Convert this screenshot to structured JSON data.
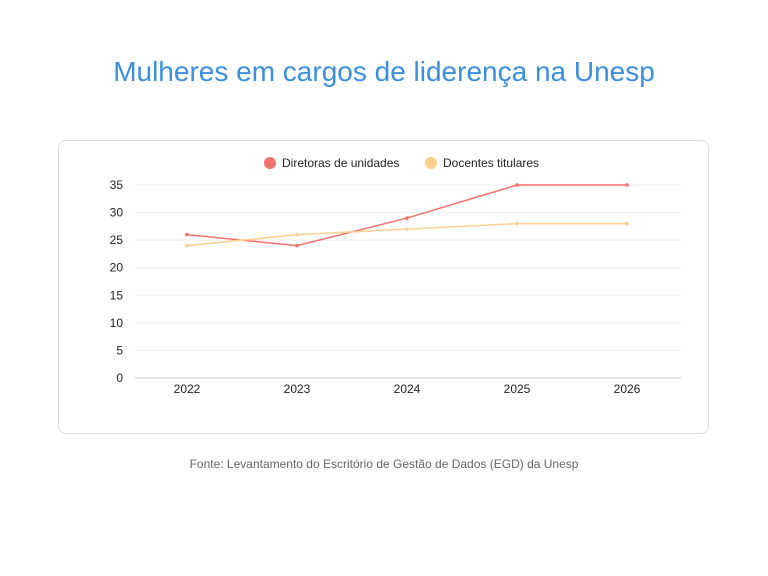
{
  "title": "Mulheres em cargos de liderença na Unesp",
  "source": "Fonte: Levantamento do Escritório de Gestão de Dados (EGD) da Unesp",
  "chart_data": {
    "type": "line",
    "categories": [
      "2022",
      "2023",
      "2024",
      "2025",
      "2026"
    ],
    "series": [
      {
        "name": "Diretoras de unidades",
        "values": [
          26,
          24,
          29,
          35,
          35
        ],
        "color": "#f4736b"
      },
      {
        "name": "Docentes titulares",
        "values": [
          24,
          26,
          27,
          28,
          28
        ],
        "color": "#fdd08f"
      }
    ],
    "ylim": [
      0,
      35
    ],
    "yticks": [
      0,
      5,
      10,
      15,
      20,
      25,
      30,
      35
    ],
    "grid": true,
    "legend": "top"
  }
}
